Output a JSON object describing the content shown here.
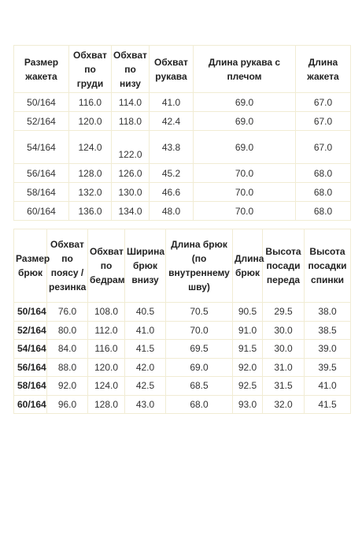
{
  "jacket_table": {
    "header": [
      "Размер жакета",
      "Обхват по груди",
      "Обхват по низу",
      "Обхват рукава",
      "Длина рукава с плечом",
      "Длина жакета"
    ],
    "rows": [
      [
        "50/164",
        "116.0",
        "114.0",
        "41.0",
        "69.0",
        "67.0"
      ],
      [
        "52/164",
        "120.0",
        "118.0",
        "42.4",
        "69.0",
        "67.0"
      ],
      [
        "54/164",
        "124.0",
        "122.0",
        "43.8",
        "69.0",
        "67.0"
      ],
      [
        "56/164",
        "128.0",
        "126.0",
        "45.2",
        "70.0",
        "68.0"
      ],
      [
        "58/164",
        "132.0",
        "130.0",
        "46.6",
        "70.0",
        "68.0"
      ],
      [
        "60/164",
        "136.0",
        "134.0",
        "48.0",
        "70.0",
        "68.0"
      ]
    ]
  },
  "trousers_table": {
    "header": [
      "Размер брюк",
      "Обхват по поясу / резинка",
      "Обхват по бедрам",
      "Ширина брюк внизу",
      "Длина брюк (по внутреннему шву)",
      "Длина брюк",
      "Высота посади переда",
      "Высота посадки спинки"
    ],
    "rows": [
      [
        "50/164",
        "76.0",
        "108.0",
        "40.5",
        "70.5",
        "90.5",
        "29.5",
        "38.0"
      ],
      [
        "52/164",
        "80.0",
        "112.0",
        "41.0",
        "70.0",
        "91.0",
        "30.0",
        "38.5"
      ],
      [
        "54/164",
        "84.0",
        "116.0",
        "41.5",
        "69.5",
        "91.5",
        "30.0",
        "39.0"
      ],
      [
        "56/164",
        "88.0",
        "120.0",
        "42.0",
        "69.0",
        "92.0",
        "31.0",
        "39.5"
      ],
      [
        "58/164",
        "92.0",
        "124.0",
        "42.5",
        "68.5",
        "92.5",
        "31.5",
        "41.0"
      ],
      [
        "60/164",
        "96.0",
        "128.0",
        "43.0",
        "68.0",
        "93.0",
        "32.0",
        "41.5"
      ]
    ]
  }
}
